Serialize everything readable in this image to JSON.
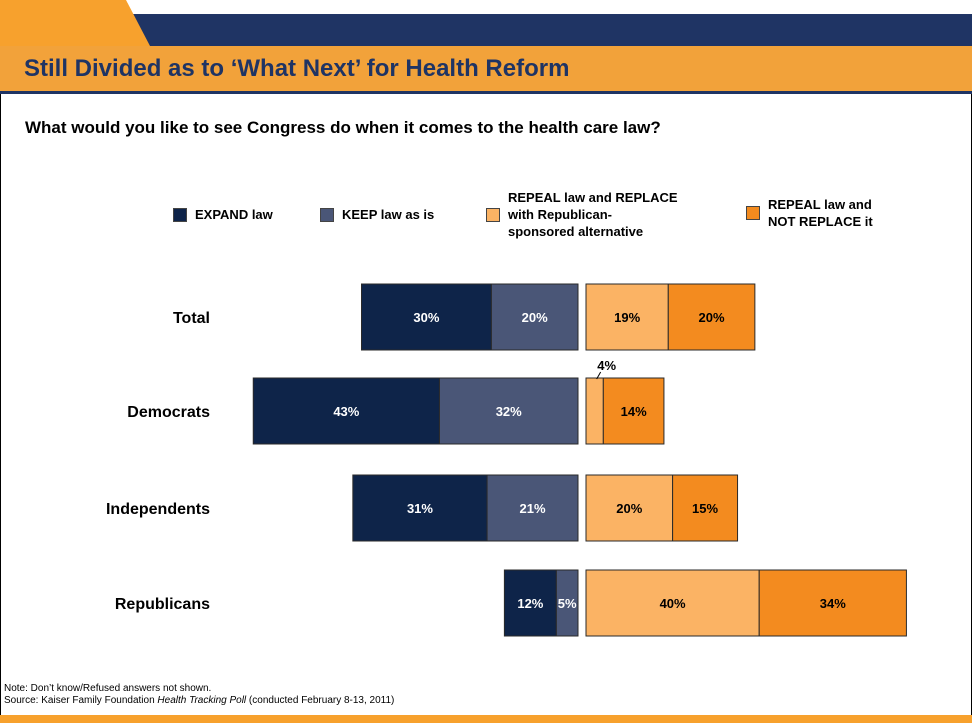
{
  "slide": {
    "title": "Still Divided as to ‘What Next’ for Health Reform",
    "question": "What would you like to see Congress do when it comes to the health care law?",
    "note": "Note: Don’t know/Refused answers not shown.",
    "source_prefix": "Source: Kaiser Family Foundation ",
    "source_italic": "Health Tracking Poll",
    "source_suffix": " (conducted February 8-13, 2011)",
    "colors": {
      "brand_navy": "#1f3464",
      "brand_orange": "#f2a23a"
    }
  },
  "legend": [
    {
      "label": "EXPAND law",
      "color": "#0e2449"
    },
    {
      "label": "KEEP law as is",
      "color": "#4a5677"
    },
    {
      "label": "REPEAL law and REPLACE\nwith Republican-\nsponsored alternative",
      "color": "#fbb364"
    },
    {
      "label": "REPEAL law and\nNOT REPLACE it",
      "color": "#f38b1f"
    }
  ],
  "chart_data": {
    "type": "bar",
    "orientation": "horizontal-diverging",
    "categories": [
      "Total",
      "Democrats",
      "Independents",
      "Republicans"
    ],
    "series": [
      {
        "name": "EXPAND law",
        "color": "#0e2449",
        "side": "left",
        "values": [
          30,
          43,
          31,
          12
        ],
        "labels": [
          "30%",
          "43%",
          "31%",
          "12%"
        ]
      },
      {
        "name": "KEEP law as is",
        "color": "#4a5677",
        "side": "left",
        "values": [
          20,
          32,
          21,
          5
        ],
        "labels": [
          "20%",
          "32%",
          "21%",
          "5%"
        ]
      },
      {
        "name": "REPEAL law and REPLACE with Republican-sponsored alternative",
        "color": "#fbb364",
        "side": "right",
        "values": [
          19,
          4,
          20,
          40
        ],
        "labels": [
          "19%",
          "4%",
          "20%",
          "40%"
        ]
      },
      {
        "name": "REPEAL law and NOT REPLACE it",
        "color": "#f38b1f",
        "side": "right",
        "values": [
          20,
          14,
          15,
          34
        ],
        "labels": [
          "20%",
          "14%",
          "15%",
          "34%"
        ]
      }
    ]
  }
}
